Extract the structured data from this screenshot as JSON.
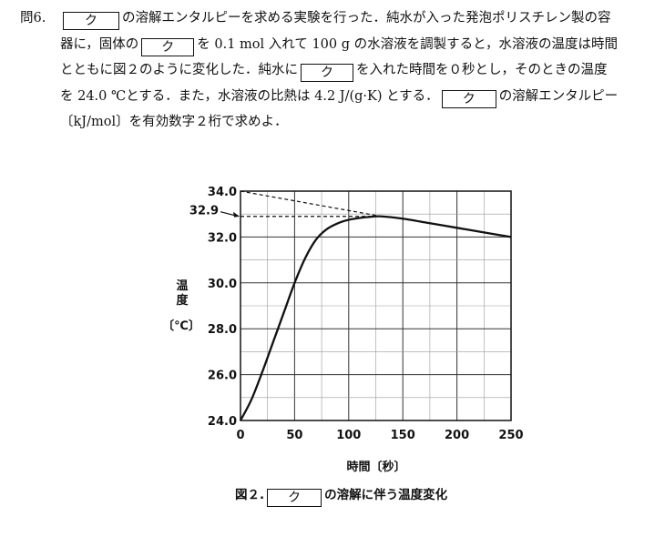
{
  "question": {
    "number": "問6.",
    "box_label": "ク",
    "line1_a": "の溶解エンタルピーを求める実験を行った．純水が入った発泡ポリスチレン製の容",
    "line2_a": "器に，固体の",
    "line2_b": "を 0.1 mol 入れて 100 g の水溶液を調製すると，水溶液の温度は時間",
    "line3": "とともに図２のように変化した．純水に",
    "line3_b": "を入れた時間を０秒とし，そのときの温度",
    "line4_a": "を 24.0 ℃とする．また，水溶液の比熱は 4.2 J/(g·K) とする．",
    "line4_b": "の溶解エンタルピー",
    "line5": "〔kJ/mol〕を有効数字２桁で求めよ．"
  },
  "chart_data": {
    "type": "line",
    "xlabel": "時間〔秒〕",
    "ylabel_chars": [
      "温",
      "度"
    ],
    "ylabel_unit": "〔℃〕",
    "xlim": [
      0,
      250
    ],
    "ylim": [
      24.0,
      34.0
    ],
    "x_ticks": [
      0,
      50,
      100,
      150,
      200,
      250
    ],
    "x_tick_labels": [
      "0",
      "50",
      "100",
      "150",
      "200",
      "250"
    ],
    "y_ticks": [
      24,
      26,
      28,
      30,
      32,
      34
    ],
    "y_tick_labels": [
      "24.0",
      "26.0",
      "28.0",
      "30.0",
      "32.0",
      "34.0"
    ],
    "grid": true,
    "annotation_value": "32.9",
    "series": [
      {
        "x": [
          0,
          10,
          20,
          30,
          40,
          50,
          60,
          70,
          80,
          90,
          100,
          110,
          120,
          130,
          150,
          175,
          200,
          225,
          250
        ],
        "y": [
          24.0,
          24.9,
          26.1,
          27.4,
          28.7,
          30.0,
          31.1,
          31.9,
          32.35,
          32.6,
          32.75,
          32.83,
          32.88,
          32.9,
          32.8,
          32.6,
          32.4,
          32.2,
          32.0
        ]
      }
    ],
    "extrapolation_line": {
      "x": [
        0,
        130
      ],
      "y": [
        34.0,
        32.9
      ]
    },
    "guide_line": {
      "x": [
        0,
        130
      ],
      "y": [
        32.9,
        32.9
      ]
    }
  },
  "caption": {
    "fig": "図２.",
    "box_label": "ク",
    "text": "の溶解に伴う温度変化"
  }
}
